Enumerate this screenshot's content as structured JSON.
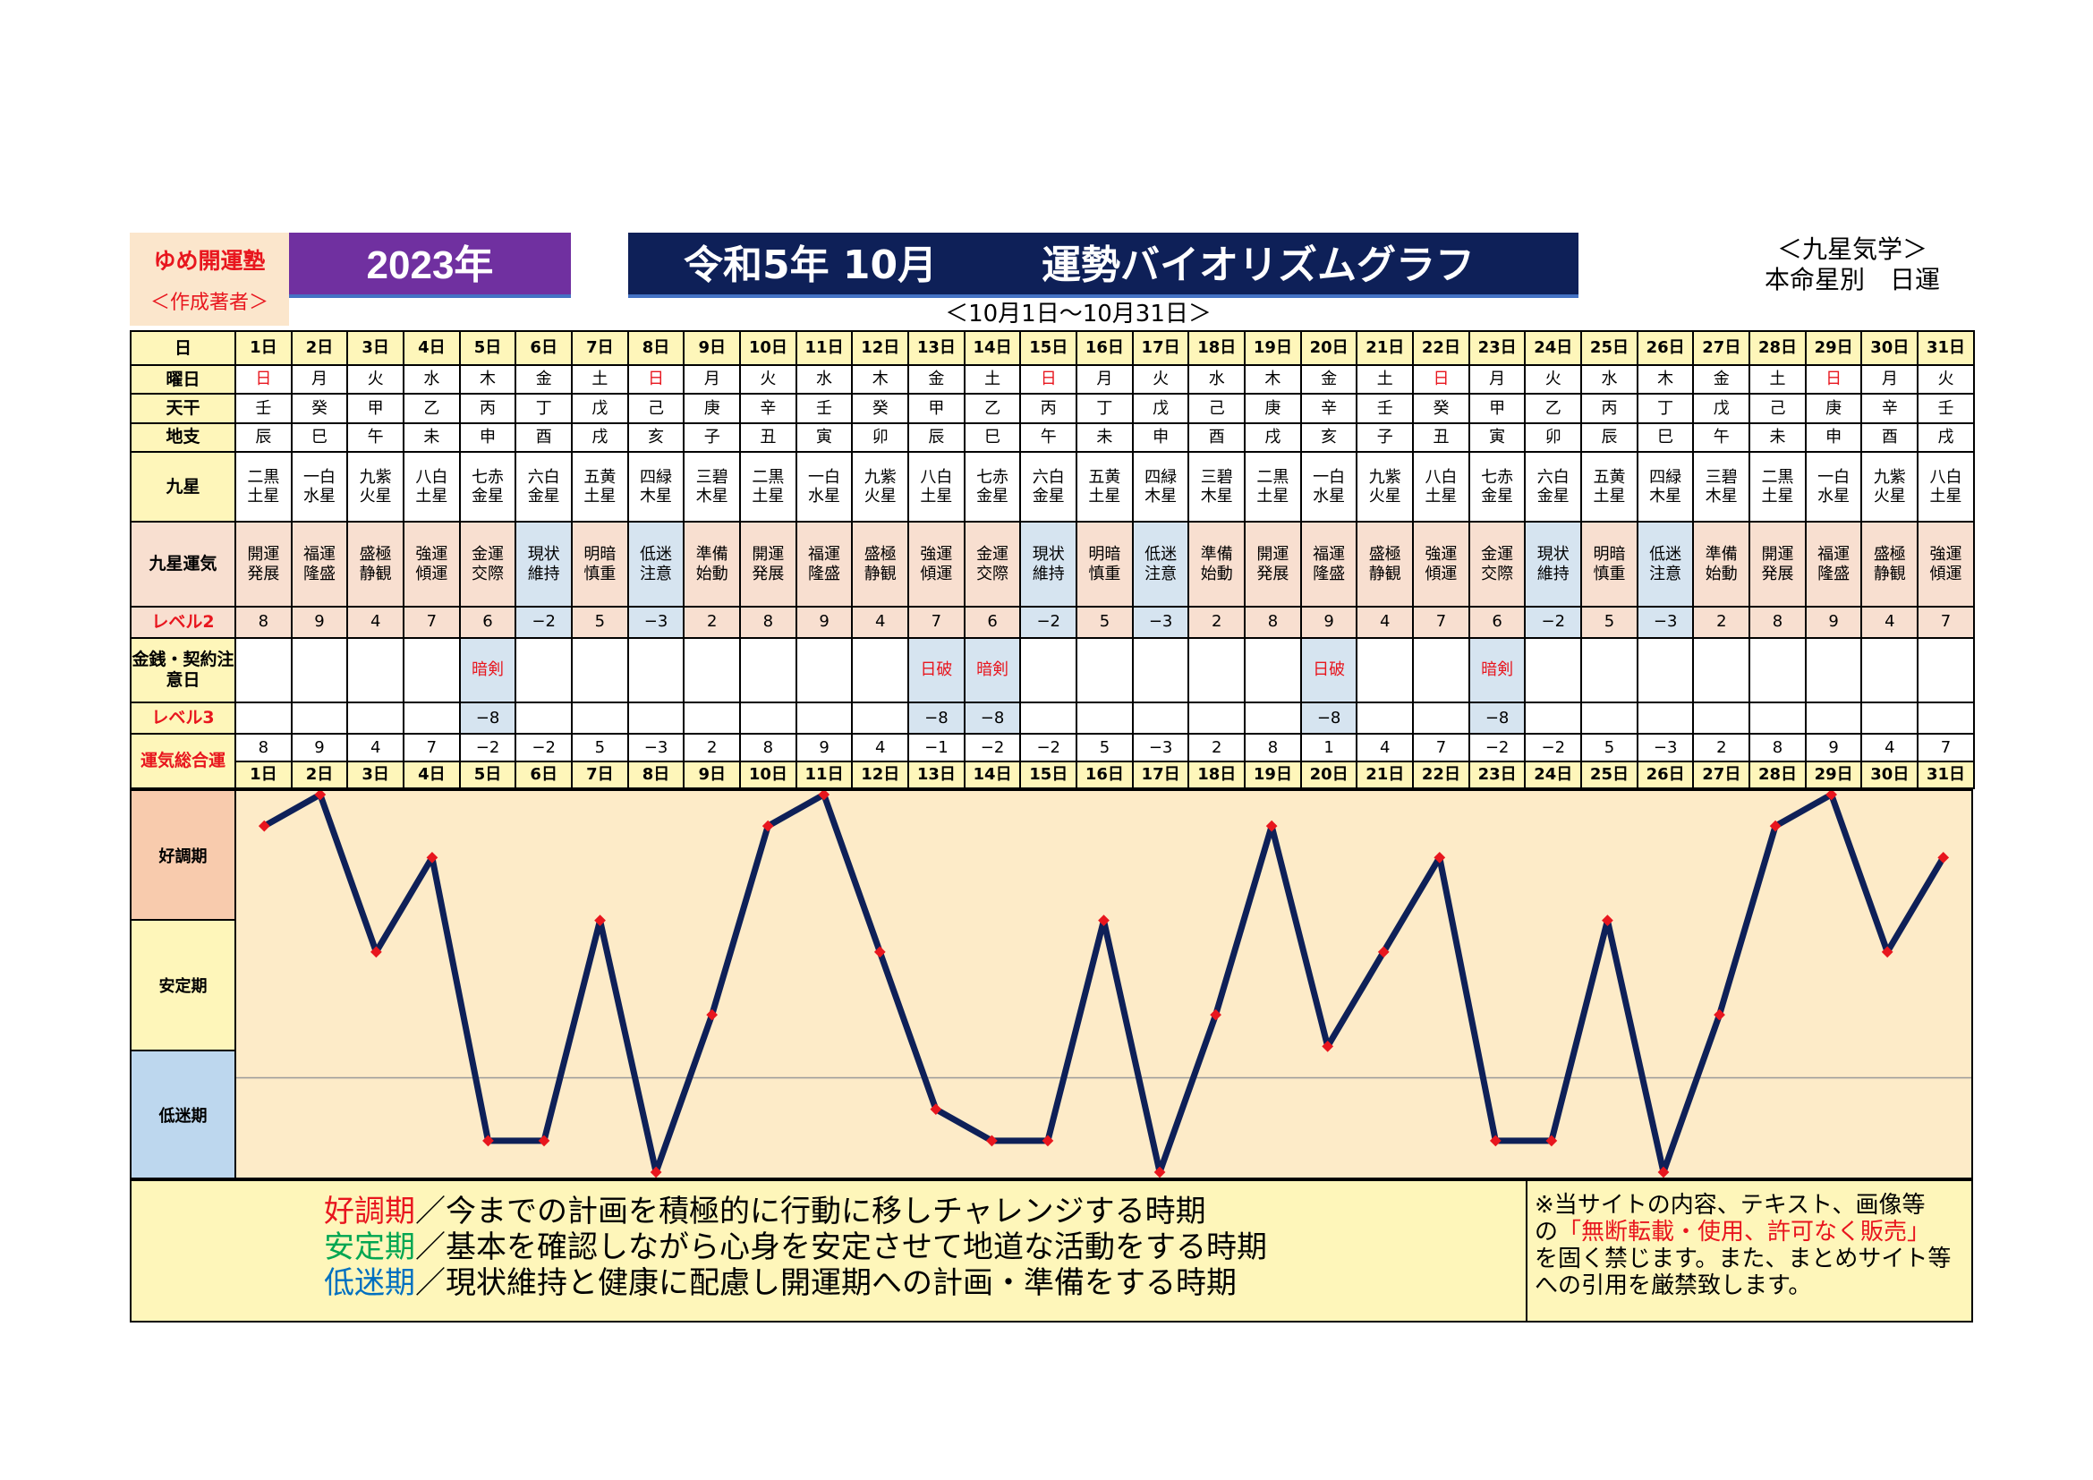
{
  "brand": {
    "name": "ゆめ開運塾",
    "role": "＜作成著者＞"
  },
  "year": "2023年",
  "title": {
    "part1": "令和5年 10月",
    "part2": "運勢バイオリズムグラフ"
  },
  "subtitle": "＜10月1日～10月31日＞",
  "kyusei": {
    "line1": "＜九星気学＞",
    "line2": "本命星別　日運"
  },
  "row_labels": {
    "day": "日",
    "weekday": "曜日",
    "tenkan": "天干",
    "chishi": "地支",
    "kyusei": "九星",
    "kyusei_unki": "九星運気",
    "level2": "レベル2",
    "money": "金銭・契約注意日",
    "level3": "レベル3",
    "total": "運気総合運"
  },
  "days": [
    "1日",
    "2日",
    "3日",
    "4日",
    "5日",
    "6日",
    "7日",
    "8日",
    "9日",
    "10日",
    "11日",
    "12日",
    "13日",
    "14日",
    "15日",
    "16日",
    "17日",
    "18日",
    "19日",
    "20日",
    "21日",
    "22日",
    "23日",
    "24日",
    "25日",
    "26日",
    "27日",
    "28日",
    "29日",
    "30日",
    "31日"
  ],
  "weekdays": [
    "日",
    "月",
    "火",
    "水",
    "木",
    "金",
    "土",
    "日",
    "月",
    "火",
    "水",
    "木",
    "金",
    "土",
    "日",
    "月",
    "火",
    "水",
    "木",
    "金",
    "土",
    "日",
    "月",
    "火",
    "水",
    "木",
    "金",
    "土",
    "日",
    "月",
    "火"
  ],
  "tenkan": [
    "壬",
    "癸",
    "甲",
    "乙",
    "丙",
    "丁",
    "戊",
    "己",
    "庚",
    "辛",
    "壬",
    "癸",
    "甲",
    "乙",
    "丙",
    "丁",
    "戊",
    "己",
    "庚",
    "辛",
    "壬",
    "癸",
    "甲",
    "乙",
    "丙",
    "丁",
    "戊",
    "己",
    "庚",
    "辛",
    "壬"
  ],
  "chishi": [
    "辰",
    "巳",
    "午",
    "未",
    "申",
    "酉",
    "戌",
    "亥",
    "子",
    "丑",
    "寅",
    "卯",
    "辰",
    "巳",
    "午",
    "未",
    "申",
    "酉",
    "戌",
    "亥",
    "子",
    "丑",
    "寅",
    "卯",
    "辰",
    "巳",
    "午",
    "未",
    "申",
    "酉",
    "戌"
  ],
  "kyusei_stars": [
    [
      "二黒",
      "土星"
    ],
    [
      "一白",
      "水星"
    ],
    [
      "九紫",
      "火星"
    ],
    [
      "八白",
      "土星"
    ],
    [
      "七赤",
      "金星"
    ],
    [
      "六白",
      "金星"
    ],
    [
      "五黄",
      "土星"
    ],
    [
      "四緑",
      "木星"
    ],
    [
      "三碧",
      "木星"
    ],
    [
      "二黒",
      "土星"
    ],
    [
      "一白",
      "水星"
    ],
    [
      "九紫",
      "火星"
    ],
    [
      "八白",
      "土星"
    ],
    [
      "七赤",
      "金星"
    ],
    [
      "六白",
      "金星"
    ],
    [
      "五黄",
      "土星"
    ],
    [
      "四緑",
      "木星"
    ],
    [
      "三碧",
      "木星"
    ],
    [
      "二黒",
      "土星"
    ],
    [
      "一白",
      "水星"
    ],
    [
      "九紫",
      "火星"
    ],
    [
      "八白",
      "土星"
    ],
    [
      "七赤",
      "金星"
    ],
    [
      "六白",
      "金星"
    ],
    [
      "五黄",
      "土星"
    ],
    [
      "四緑",
      "木星"
    ],
    [
      "三碧",
      "木星"
    ],
    [
      "二黒",
      "土星"
    ],
    [
      "一白",
      "水星"
    ],
    [
      "九紫",
      "火星"
    ],
    [
      "八白",
      "土星"
    ]
  ],
  "kyusei_unki": [
    [
      "開運",
      "発展"
    ],
    [
      "福運",
      "隆盛"
    ],
    [
      "盛極",
      "静観"
    ],
    [
      "強運",
      "傾運"
    ],
    [
      "金運",
      "交際"
    ],
    [
      "現状",
      "維持"
    ],
    [
      "明暗",
      "慎重"
    ],
    [
      "低迷",
      "注意"
    ],
    [
      "準備",
      "始動"
    ],
    [
      "開運",
      "発展"
    ],
    [
      "福運",
      "隆盛"
    ],
    [
      "盛極",
      "静観"
    ],
    [
      "強運",
      "傾運"
    ],
    [
      "金運",
      "交際"
    ],
    [
      "現状",
      "維持"
    ],
    [
      "明暗",
      "慎重"
    ],
    [
      "低迷",
      "注意"
    ],
    [
      "準備",
      "始動"
    ],
    [
      "開運",
      "発展"
    ],
    [
      "福運",
      "隆盛"
    ],
    [
      "盛極",
      "静観"
    ],
    [
      "強運",
      "傾運"
    ],
    [
      "金運",
      "交際"
    ],
    [
      "現状",
      "維持"
    ],
    [
      "明暗",
      "慎重"
    ],
    [
      "低迷",
      "注意"
    ],
    [
      "準備",
      "始動"
    ],
    [
      "開運",
      "発展"
    ],
    [
      "福運",
      "隆盛"
    ],
    [
      "盛極",
      "静観"
    ],
    [
      "強運",
      "傾運"
    ]
  ],
  "level2": [
    "8",
    "9",
    "4",
    "7",
    "6",
    "−2",
    "5",
    "−3",
    "2",
    "8",
    "9",
    "4",
    "7",
    "6",
    "−2",
    "5",
    "−3",
    "2",
    "8",
    "9",
    "4",
    "7",
    "6",
    "−2",
    "5",
    "−3",
    "2",
    "8",
    "9",
    "4",
    "7"
  ],
  "money": [
    "",
    "",
    "",
    "",
    "暗剣",
    "",
    "",
    "",
    "",
    "",
    "",
    "",
    "日破",
    "暗剣",
    "",
    "",
    "",
    "",
    "",
    "日破",
    "",
    "",
    "暗剣",
    "",
    "",
    "",
    "",
    "",
    "",
    "",
    ""
  ],
  "level3": [
    "",
    "",
    "",
    "",
    "−8",
    "",
    "",
    "",
    "",
    "",
    "",
    "",
    "−8",
    "−8",
    "",
    "",
    "",
    "",
    "",
    "−8",
    "",
    "",
    "−8",
    "",
    "",
    "",
    "",
    "",
    "",
    "",
    ""
  ],
  "total": [
    "8",
    "9",
    "4",
    "7",
    "−2",
    "−2",
    "5",
    "−3",
    "2",
    "8",
    "9",
    "4",
    "−1",
    "−2",
    "−2",
    "5",
    "−3",
    "2",
    "8",
    "1",
    "4",
    "7",
    "−2",
    "−2",
    "5",
    "−3",
    "2",
    "8",
    "9",
    "4",
    "7"
  ],
  "chart_data": {
    "type": "line",
    "x": [
      "1日",
      "2日",
      "3日",
      "4日",
      "5日",
      "6日",
      "7日",
      "8日",
      "9日",
      "10日",
      "11日",
      "12日",
      "13日",
      "14日",
      "15日",
      "16日",
      "17日",
      "18日",
      "19日",
      "20日",
      "21日",
      "22日",
      "23日",
      "24日",
      "25日",
      "26日",
      "27日",
      "28日",
      "29日",
      "30日",
      "31日"
    ],
    "series": [
      {
        "values": [
          8,
          9,
          4,
          7,
          -2,
          -2,
          5,
          -3,
          2,
          8,
          9,
          4,
          -1,
          -2,
          -2,
          5,
          -3,
          2,
          8,
          1,
          4,
          7,
          -2,
          -2,
          5,
          -3,
          2,
          8,
          9,
          4,
          7
        ]
      }
    ],
    "bands": [
      "好調期",
      "安定期",
      "低迷期"
    ],
    "ylim": [
      -3,
      9
    ],
    "grid": false,
    "line_color": "#0e2058",
    "marker_color": "#e8161e",
    "band_colors": [
      "#f8cbad",
      "#fef6ba",
      "#bdd7ee"
    ],
    "plot_bg": "#fdebc8"
  },
  "legend": [
    {
      "term": "好調期",
      "text": "／今までの計画を積極的に行動に移しチャレンジする時期",
      "color": "#e8161e"
    },
    {
      "term": "安定期",
      "text": "／基本を確認しながら心身を安定させて地道な活動をする時期",
      "color": "#00a651"
    },
    {
      "term": "低迷期",
      "text": "／現状維持と健康に配慮し開運期への計画・準備をする時期",
      "color": "#0070c0"
    }
  ],
  "notice": {
    "line1": "※当サイトの内容、テキスト、画像等",
    "line2_a": "の",
    "line2_b": "「無断転載・使用、許可なく販売」",
    "line3": "を固く禁じます。また、まとめサイト等",
    "line4": "への引用を厳禁致します。"
  }
}
